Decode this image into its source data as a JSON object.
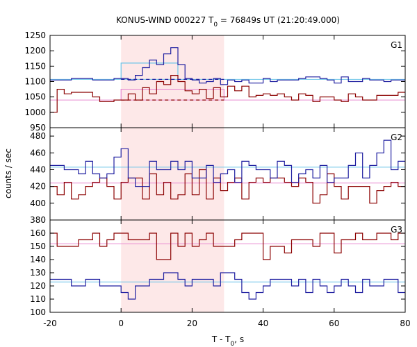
{
  "chart_data": {
    "type": "line",
    "title": "KONUS-WIND 000227 T₀ = 76849s UT (21:20:49.000)",
    "title_prefix": "KONUS-WIND 000227 T",
    "title_sub": "0",
    "title_suffix": " = 76849s UT (21:20:49.000)",
    "xlabel_prefix": "T - T",
    "xlabel_sub": "0",
    "xlabel_suffix": ", s",
    "ylabel": "counts / sec",
    "xlim": [
      -20,
      80
    ],
    "x_ticks": [
      -20,
      0,
      20,
      40,
      60,
      80
    ],
    "x_tick_labels": [
      "-20",
      "0",
      "20",
      "40",
      "60",
      "80"
    ],
    "shaded_interval": [
      0,
      29
    ],
    "shade_color": "#fde8e8",
    "colors": {
      "blue": "#1f1fa0",
      "red": "#8b0000",
      "light_blue": "#6cc4e8",
      "pink": "#e88ad0"
    },
    "panels": [
      {
        "label": "G1",
        "ylim": [
          950,
          1250
        ],
        "y_ticks": [
          950,
          1000,
          1050,
          1100,
          1150,
          1200,
          1250
        ],
        "y_tick_labels": [
          "950",
          "1000",
          "1050",
          "1100",
          "1150",
          "1200",
          "1250"
        ],
        "blue_series": {
          "bin_start": -20,
          "bin_width": 2,
          "values": [
            1105,
            1105,
            1105,
            1110,
            1110,
            1110,
            1105,
            1105,
            1105,
            1110,
            1110,
            1105,
            1120,
            1145,
            1170,
            1155,
            1190,
            1210,
            1155,
            1110,
            1105,
            1095,
            1100,
            1110,
            1090,
            1105,
            1100,
            1105,
            1095,
            1095,
            1110,
            1100,
            1105,
            1105,
            1105,
            1110,
            1115,
            1115,
            1110,
            1105,
            1095,
            1115,
            1100,
            1100,
            1110,
            1105,
            1105,
            1100,
            1105,
            1105
          ]
        },
        "red_series": {
          "bin_start": -20,
          "bin_width": 2,
          "values": [
            1000,
            1075,
            1060,
            1065,
            1065,
            1065,
            1050,
            1035,
            1035,
            1040,
            1040,
            1060,
            1040,
            1080,
            1060,
            1100,
            1090,
            1120,
            1100,
            1070,
            1060,
            1075,
            1045,
            1080,
            1050,
            1085,
            1070,
            1085,
            1050,
            1055,
            1060,
            1055,
            1060,
            1050,
            1040,
            1060,
            1055,
            1035,
            1050,
            1050,
            1040,
            1035,
            1060,
            1050,
            1040,
            1040,
            1055,
            1055,
            1055,
            1065
          ]
        },
        "blue_background": 1107,
        "red_background": 1040,
        "blue_step": {
          "x": [
            0,
            16
          ],
          "y": 1160
        },
        "pink_step": {
          "x": [
            0,
            29
          ],
          "y": 1075
        },
        "blue_dash": {
          "x": [
            0,
            29
          ],
          "y": 1107
        },
        "red_dash": {
          "x": [
            0,
            29
          ],
          "y": 1040
        }
      },
      {
        "label": "G2",
        "ylim": [
          380,
          490
        ],
        "y_ticks": [
          380,
          400,
          420,
          440,
          460,
          480
        ],
        "y_tick_labels": [
          "380",
          "400",
          "420",
          "440",
          "460",
          "480"
        ],
        "blue_series": {
          "bin_start": -20,
          "bin_width": 2,
          "values": [
            445,
            445,
            440,
            440,
            435,
            450,
            435,
            430,
            435,
            455,
            465,
            430,
            420,
            420,
            450,
            440,
            440,
            450,
            440,
            450,
            430,
            430,
            445,
            425,
            435,
            440,
            425,
            450,
            445,
            440,
            440,
            430,
            450,
            445,
            425,
            435,
            440,
            430,
            445,
            425,
            430,
            430,
            445,
            460,
            430,
            445,
            460,
            475,
            440,
            450
          ]
        },
        "red_series": {
          "bin_start": -20,
          "bin_width": 2,
          "values": [
            420,
            410,
            425,
            405,
            410,
            420,
            425,
            430,
            420,
            405,
            425,
            430,
            430,
            405,
            435,
            410,
            425,
            405,
            410,
            435,
            410,
            440,
            405,
            430,
            415,
            425,
            430,
            405,
            425,
            430,
            425,
            430,
            430,
            425,
            420,
            430,
            425,
            400,
            410,
            435,
            420,
            405,
            420,
            420,
            420,
            400,
            415,
            420,
            425,
            420
          ]
        },
        "blue_background": 443,
        "red_background": 424
      },
      {
        "label": "G3",
        "ylim": [
          100,
          170
        ],
        "y_ticks": [
          100,
          110,
          120,
          130,
          140,
          150,
          160
        ],
        "y_tick_labels": [
          "100",
          "110",
          "120",
          "130",
          "140",
          "150",
          "160"
        ],
        "blue_series": {
          "bin_start": -20,
          "bin_width": 2,
          "values": [
            125,
            125,
            125,
            120,
            120,
            125,
            125,
            120,
            120,
            120,
            115,
            110,
            120,
            120,
            125,
            125,
            130,
            130,
            125,
            120,
            125,
            125,
            125,
            120,
            130,
            130,
            125,
            115,
            110,
            115,
            120,
            125,
            125,
            125,
            120,
            125,
            115,
            125,
            120,
            115,
            120,
            125,
            120,
            115,
            125,
            120,
            120,
            125,
            125,
            115
          ]
        },
        "red_series": {
          "bin_start": -20,
          "bin_width": 2,
          "values": [
            160,
            150,
            150,
            150,
            155,
            155,
            160,
            150,
            155,
            160,
            160,
            155,
            155,
            155,
            160,
            140,
            140,
            160,
            150,
            160,
            150,
            155,
            160,
            150,
            150,
            150,
            155,
            160,
            160,
            160,
            140,
            150,
            150,
            145,
            155,
            155,
            155,
            150,
            160,
            160,
            145,
            155,
            155,
            160,
            155,
            155,
            160,
            160,
            155,
            160
          ]
        },
        "blue_background": 123,
        "red_background": 152
      }
    ]
  }
}
